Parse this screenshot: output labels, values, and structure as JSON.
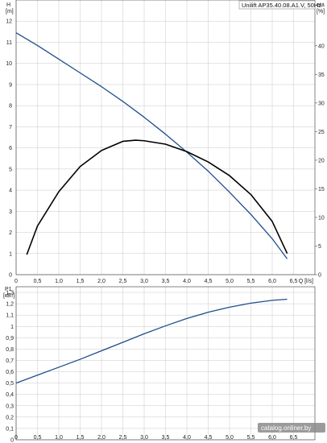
{
  "chart_data": [
    {
      "type": "line",
      "title": "Unilift AP35.40.08.A1.V, 50Hz",
      "xlabel": "Q [l/s]",
      "ylabel": "H [m]",
      "y2label": "eta [%]",
      "xlim": [
        0,
        7.0
      ],
      "ylim": [
        0,
        13
      ],
      "y2lim": [
        0,
        48
      ],
      "grid": true,
      "x_ticks": [
        "0",
        "0,5",
        "1,0",
        "1,5",
        "2,0",
        "2,5",
        "3,0",
        "3,5",
        "4,0",
        "4,5",
        "5,0",
        "5,5",
        "6,0",
        "6,5"
      ],
      "y_ticks": [
        "0",
        "1",
        "2",
        "3",
        "4",
        "5",
        "6",
        "7",
        "8",
        "9",
        "10",
        "11",
        "12"
      ],
      "y2_ticks": [
        "0",
        "5",
        "10",
        "15",
        "20",
        "25",
        "30",
        "35",
        "40"
      ],
      "series": [
        {
          "color": "#1f4e8c",
          "axis": "left",
          "x": [
            0,
            0.5,
            1.0,
            1.5,
            2.0,
            2.5,
            3.0,
            3.5,
            4.0,
            4.5,
            5.0,
            5.5,
            6.0,
            6.35
          ],
          "y": [
            11.45,
            10.85,
            10.2,
            9.55,
            8.9,
            8.2,
            7.45,
            6.65,
            5.8,
            4.9,
            3.9,
            2.85,
            1.7,
            0.75
          ]
        },
        {
          "color": "#000000",
          "axis": "right",
          "x": [
            0.25,
            0.5,
            1.0,
            1.5,
            2.0,
            2.5,
            2.8,
            3.0,
            3.5,
            4.0,
            4.5,
            5.0,
            5.5,
            6.0,
            6.35
          ],
          "y": [
            3.5,
            8.5,
            14.5,
            18.9,
            21.7,
            23.3,
            23.5,
            23.4,
            22.8,
            21.5,
            19.7,
            17.3,
            14.0,
            9.3,
            3.7
          ]
        }
      ]
    },
    {
      "type": "line",
      "xlabel": "Q [l/s]",
      "ylabel": "P1 [кВт]",
      "xlim": [
        0,
        7.0
      ],
      "ylim": [
        0,
        1.35
      ],
      "grid": true,
      "x_ticks": [
        "0",
        "0,5",
        "1,0",
        "1,5",
        "2,0",
        "2,5",
        "3,0",
        "3,5",
        "4,0",
        "4,5",
        "5,0",
        "5,5",
        "6,0",
        "6,5"
      ],
      "y_ticks": [
        "0",
        "0,1",
        "0,2",
        "0,3",
        "0,4",
        "0,5",
        "0,6",
        "0,7",
        "0,8",
        "0,9",
        "1",
        "1,1",
        "1,2",
        "1,3"
      ],
      "series": [
        {
          "color": "#1f4e8c",
          "axis": "left",
          "x": [
            0,
            0.5,
            1.0,
            1.5,
            2.0,
            2.5,
            3.0,
            3.5,
            4.0,
            4.5,
            5.0,
            5.5,
            6.0,
            6.35
          ],
          "y": [
            0.5,
            0.57,
            0.64,
            0.71,
            0.785,
            0.86,
            0.935,
            1.005,
            1.07,
            1.125,
            1.17,
            1.205,
            1.23,
            1.24
          ]
        }
      ]
    }
  ],
  "watermark": "catalog.onliner.by",
  "colors": {
    "grid": "#c8c8c8",
    "axis": "#333333",
    "head": "#1f4e8c",
    "eta": "#000000",
    "power": "#1f4e8c"
  }
}
